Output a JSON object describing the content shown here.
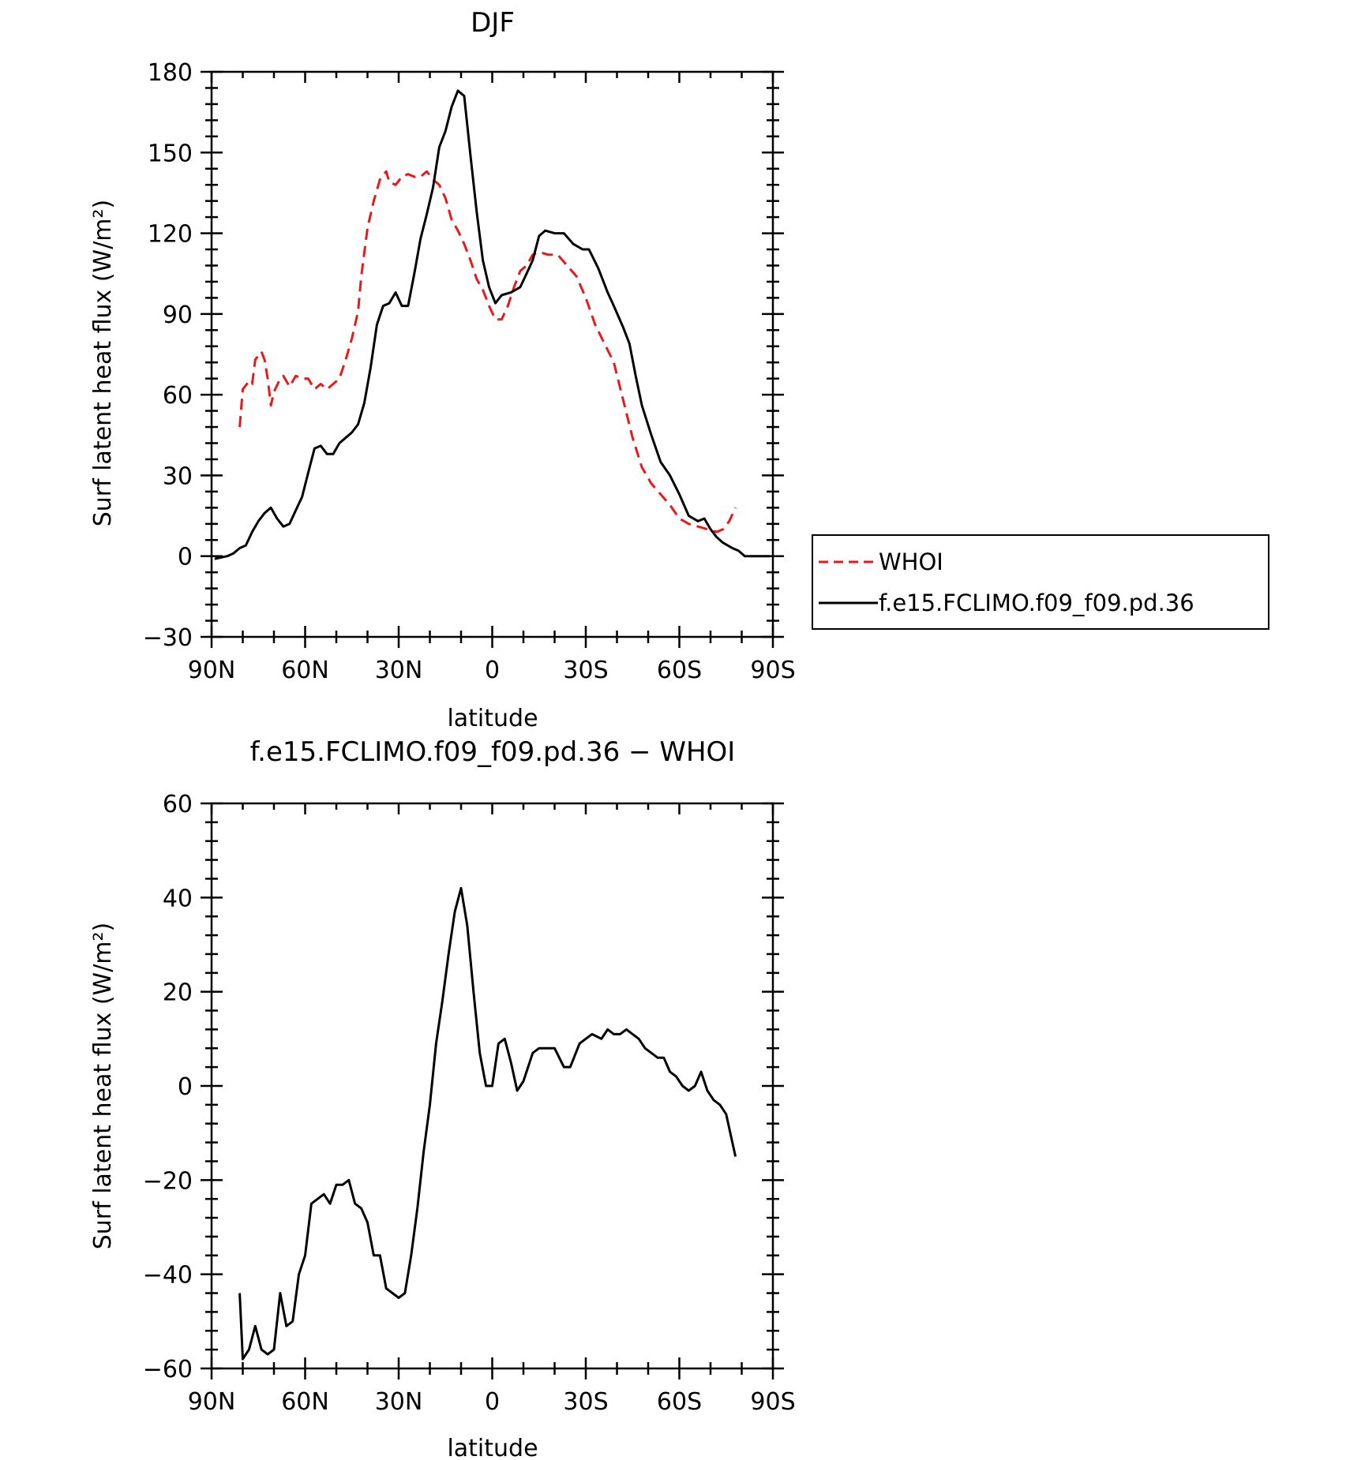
{
  "chart_data": [
    {
      "type": "line",
      "title": "DJF",
      "xlabel": "latitude",
      "ylabel": "Surf latent heat flux (W/m²)",
      "xlim": [
        90,
        -90
      ],
      "ylim": [
        -30,
        180
      ],
      "x_tick_values": [
        90,
        60,
        30,
        0,
        -30,
        -60,
        -90
      ],
      "x_tick_labels": [
        "90N",
        "60N",
        "30N",
        "0",
        "30S",
        "60S",
        "90S"
      ],
      "y_tick_values": [
        -30,
        0,
        30,
        60,
        90,
        120,
        150,
        180
      ],
      "y_tick_labels": [
        "−30",
        "0",
        "30",
        "60",
        "90",
        "120",
        "150",
        "180"
      ],
      "x_note": "latitude in degrees (positive = N, negative = S)",
      "legend_position": "right",
      "series": [
        {
          "name": "WHOI",
          "color": "#e8191b",
          "dash": "dashed",
          "points": [
            [
              81,
              48
            ],
            [
              80,
              62
            ],
            [
              78,
              65
            ],
            [
              77,
              64
            ],
            [
              76,
              73
            ],
            [
              74,
              76
            ],
            [
              73,
              73
            ],
            [
              72,
              66
            ],
            [
              71,
              56
            ],
            [
              70,
              61
            ],
            [
              68,
              66
            ],
            [
              67,
              67
            ],
            [
              65,
              63
            ],
            [
              63,
              67
            ],
            [
              61,
              66
            ],
            [
              59,
              66
            ],
            [
              57,
              62
            ],
            [
              55,
              64
            ],
            [
              53,
              62
            ],
            [
              51,
              64
            ],
            [
              49,
              66
            ],
            [
              47,
              73
            ],
            [
              45,
              81
            ],
            [
              43,
              91
            ],
            [
              42,
              104
            ],
            [
              40,
              122
            ],
            [
              38,
              132
            ],
            [
              36,
              140
            ],
            [
              34,
              143
            ],
            [
              33,
              139
            ],
            [
              31,
              138
            ],
            [
              29,
              141
            ],
            [
              27,
              142
            ],
            [
              25,
              141
            ],
            [
              23,
              141
            ],
            [
              21,
              143
            ],
            [
              19,
              140
            ],
            [
              17,
              138
            ],
            [
              15,
              133
            ],
            [
              13,
              125
            ],
            [
              11,
              121
            ],
            [
              9,
              116
            ],
            [
              7,
              110
            ],
            [
              5,
              103
            ],
            [
              3,
              99
            ],
            [
              1,
              93
            ],
            [
              -1,
              88
            ],
            [
              -3,
              88
            ],
            [
              -5,
              93
            ],
            [
              -7,
              100
            ],
            [
              -9,
              106
            ],
            [
              -11,
              108
            ],
            [
              -13,
              112
            ],
            [
              -15,
              113
            ],
            [
              -18,
              112
            ],
            [
              -21,
              112
            ],
            [
              -24,
              108
            ],
            [
              -27,
              104
            ],
            [
              -30,
              96
            ],
            [
              -33,
              86
            ],
            [
              -36,
              79
            ],
            [
              -39,
              72
            ],
            [
              -42,
              58
            ],
            [
              -45,
              44
            ],
            [
              -48,
              33
            ],
            [
              -51,
              27
            ],
            [
              -54,
              23
            ],
            [
              -57,
              19
            ],
            [
              -60,
              14
            ],
            [
              -63,
              12
            ],
            [
              -66,
              11
            ],
            [
              -69,
              10
            ],
            [
              -72,
              9
            ],
            [
              -74,
              10
            ],
            [
              -76,
              13
            ],
            [
              -78,
              18
            ]
          ]
        },
        {
          "name": "f.e15.FCLIMO.f09_f09.pd.36",
          "color": "#000000",
          "dash": "solid",
          "points": [
            [
              89,
              -1
            ],
            [
              87,
              -0.5
            ],
            [
              85,
              0
            ],
            [
              83,
              1
            ],
            [
              81,
              3
            ],
            [
              79,
              4
            ],
            [
              77,
              9
            ],
            [
              75,
              13
            ],
            [
              73,
              16
            ],
            [
              71,
              18
            ],
            [
              69,
              14
            ],
            [
              67,
              11
            ],
            [
              65,
              12
            ],
            [
              63,
              17
            ],
            [
              61,
              22
            ],
            [
              59,
              31
            ],
            [
              57,
              40
            ],
            [
              55,
              41
            ],
            [
              53,
              38
            ],
            [
              51,
              38
            ],
            [
              49,
              42
            ],
            [
              47,
              44
            ],
            [
              45,
              46
            ],
            [
              43,
              49
            ],
            [
              41,
              57
            ],
            [
              39,
              70
            ],
            [
              37,
              86
            ],
            [
              35,
              93
            ],
            [
              33,
              94
            ],
            [
              31,
              98
            ],
            [
              29,
              93
            ],
            [
              27,
              93
            ],
            [
              25,
              105
            ],
            [
              23,
              118
            ],
            [
              21,
              127
            ],
            [
              19,
              137
            ],
            [
              17,
              152
            ],
            [
              15,
              158
            ],
            [
              13,
              167
            ],
            [
              11,
              173
            ],
            [
              9,
              171
            ],
            [
              7,
              149
            ],
            [
              5,
              128
            ],
            [
              3,
              110
            ],
            [
              1,
              100
            ],
            [
              -1,
              94
            ],
            [
              -3,
              97
            ],
            [
              -6,
              98
            ],
            [
              -9,
              100
            ],
            [
              -11,
              105
            ],
            [
              -13,
              110
            ],
            [
              -15,
              119
            ],
            [
              -17,
              121
            ],
            [
              -20,
              120
            ],
            [
              -23,
              120
            ],
            [
              -26,
              116
            ],
            [
              -29,
              114
            ],
            [
              -31,
              114
            ],
            [
              -34,
              107
            ],
            [
              -37,
              98
            ],
            [
              -39,
              93
            ],
            [
              -42,
              85
            ],
            [
              -44,
              79
            ],
            [
              -46,
              67
            ],
            [
              -48,
              56
            ],
            [
              -51,
              45
            ],
            [
              -54,
              35
            ],
            [
              -57,
              30
            ],
            [
              -60,
              23
            ],
            [
              -63,
              15
            ],
            [
              -66,
              13
            ],
            [
              -68,
              14
            ],
            [
              -70,
              10
            ],
            [
              -72,
              7
            ],
            [
              -74,
              5
            ],
            [
              -77,
              3
            ],
            [
              -79,
              2
            ],
            [
              -81,
              0
            ],
            [
              -85,
              0
            ],
            [
              -89,
              0
            ]
          ]
        }
      ]
    },
    {
      "type": "line",
      "title": "f.e15.FCLIMO.f09_f09.pd.36 − WHOI",
      "xlabel": "latitude",
      "ylabel": "Surf latent heat flux (W/m²)",
      "xlim": [
        90,
        -90
      ],
      "ylim": [
        -60,
        60
      ],
      "x_tick_values": [
        90,
        60,
        30,
        0,
        -30,
        -60,
        -90
      ],
      "x_tick_labels": [
        "90N",
        "60N",
        "30N",
        "0",
        "30S",
        "60S",
        "90S"
      ],
      "y_tick_values": [
        -60,
        -40,
        -20,
        0,
        20,
        40,
        60
      ],
      "y_tick_labels": [
        "−60",
        "−40",
        "−20",
        "0",
        "20",
        "40",
        "60"
      ],
      "series": [
        {
          "color": "#000000",
          "dash": "solid",
          "points": [
            [
              81,
              -44
            ],
            [
              80,
              -58
            ],
            [
              78,
              -56
            ],
            [
              76,
              -51
            ],
            [
              74,
              -56
            ],
            [
              72,
              -57
            ],
            [
              70,
              -56
            ],
            [
              68,
              -44
            ],
            [
              66,
              -51
            ],
            [
              64,
              -50
            ],
            [
              62,
              -40
            ],
            [
              60,
              -36
            ],
            [
              58,
              -25
            ],
            [
              56,
              -24
            ],
            [
              54,
              -23
            ],
            [
              52,
              -25
            ],
            [
              50,
              -21
            ],
            [
              48,
              -21
            ],
            [
              46,
              -20
            ],
            [
              44,
              -25
            ],
            [
              42,
              -26
            ],
            [
              40,
              -29
            ],
            [
              38,
              -36
            ],
            [
              36,
              -36
            ],
            [
              34,
              -43
            ],
            [
              32,
              -44
            ],
            [
              30,
              -45
            ],
            [
              28,
              -44
            ],
            [
              26,
              -36
            ],
            [
              24,
              -26
            ],
            [
              22,
              -14
            ],
            [
              20,
              -4
            ],
            [
              18,
              9
            ],
            [
              16,
              18
            ],
            [
              14,
              28
            ],
            [
              12,
              37
            ],
            [
              10,
              42
            ],
            [
              8,
              34
            ],
            [
              6,
              20
            ],
            [
              4,
              7
            ],
            [
              2,
              0
            ],
            [
              0,
              0
            ],
            [
              -2,
              9
            ],
            [
              -4,
              10
            ],
            [
              -6,
              5
            ],
            [
              -8,
              -1
            ],
            [
              -10,
              1
            ],
            [
              -13,
              7
            ],
            [
              -15,
              8
            ],
            [
              -18,
              8
            ],
            [
              -20,
              8
            ],
            [
              -23,
              4
            ],
            [
              -25,
              4
            ],
            [
              -28,
              9
            ],
            [
              -30,
              10
            ],
            [
              -32,
              11
            ],
            [
              -35,
              10
            ],
            [
              -37,
              12
            ],
            [
              -39,
              11
            ],
            [
              -41,
              11
            ],
            [
              -43,
              12
            ],
            [
              -45,
              11
            ],
            [
              -47,
              10
            ],
            [
              -49,
              8
            ],
            [
              -51,
              7
            ],
            [
              -53,
              6
            ],
            [
              -55,
              6
            ],
            [
              -57,
              3
            ],
            [
              -59,
              2
            ],
            [
              -61,
              0
            ],
            [
              -63,
              -1
            ],
            [
              -65,
              0
            ],
            [
              -67,
              3
            ],
            [
              -69,
              -1
            ],
            [
              -71,
              -3
            ],
            [
              -73,
              -4
            ],
            [
              -75,
              -6
            ],
            [
              -78,
              -15
            ]
          ]
        }
      ]
    }
  ]
}
